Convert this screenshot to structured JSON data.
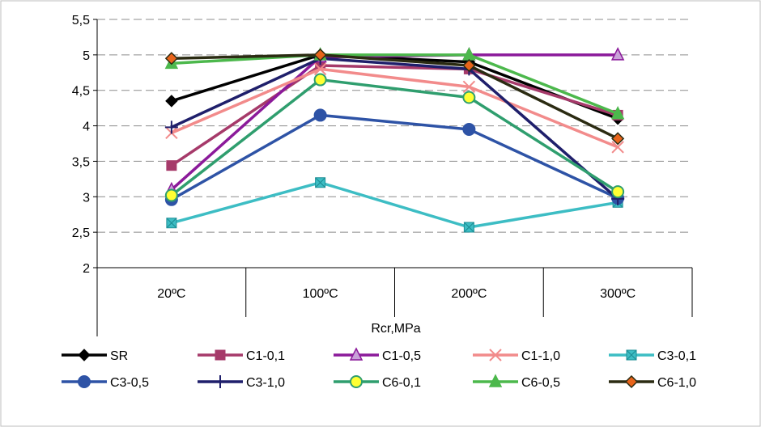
{
  "chart_data": {
    "type": "line",
    "categories": [
      "20ºC",
      "100ºC",
      "200ºC",
      "300ºC"
    ],
    "xlabel": "Rcr,MPa",
    "ylabel": "",
    "ylim": [
      2,
      5.5
    ],
    "yticks": [
      "2",
      "2,5",
      "3",
      "3,5",
      "4",
      "4,5",
      "5",
      "5,5"
    ],
    "grid": "horizontal dashed",
    "legend": "bottom",
    "series": [
      {
        "name": "SR",
        "color": "#000000",
        "marker": "diamond",
        "values": [
          4.35,
          5.0,
          4.9,
          4.1
        ]
      },
      {
        "name": "C1-0,1",
        "color": "#a63a6a",
        "marker": "square",
        "values": [
          3.44,
          4.85,
          4.8,
          4.15
        ]
      },
      {
        "name": "C1-0,5",
        "color": "#8b1a9a",
        "marker": "triangle",
        "values": [
          3.1,
          4.97,
          5.0,
          5.0
        ]
      },
      {
        "name": "C1-1,0",
        "color": "#f28b8b",
        "marker": "x",
        "values": [
          3.9,
          4.8,
          4.55,
          3.7
        ]
      },
      {
        "name": "C3-0,1",
        "color": "#3dbdc4",
        "marker": "squarex",
        "values": [
          2.63,
          3.2,
          2.57,
          2.92
        ]
      },
      {
        "name": "C3-0,5",
        "color": "#2e53a6",
        "marker": "circle",
        "values": [
          2.96,
          4.15,
          3.95,
          2.98
        ]
      },
      {
        "name": "C3-1,0",
        "color": "#1f1f6b",
        "marker": "plus",
        "values": [
          3.98,
          4.95,
          4.8,
          2.97
        ]
      },
      {
        "name": "C6-0,1",
        "color": "#2f9e6e",
        "marker": "circlefill",
        "values": [
          3.02,
          4.65,
          4.4,
          3.07
        ]
      },
      {
        "name": "C6-0,5",
        "color": "#4cb84c",
        "marker": "triangle",
        "values": [
          4.88,
          5.0,
          5.0,
          4.17
        ]
      },
      {
        "name": "C6-1,0",
        "color": "#2b2b12",
        "marker": "diamondfill",
        "values": [
          4.95,
          5.0,
          4.85,
          3.82
        ]
      }
    ]
  }
}
